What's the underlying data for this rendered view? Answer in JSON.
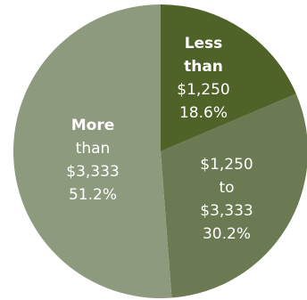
{
  "chart_data": {
    "type": "pie",
    "start_angle_deg": 0,
    "direction": "clockwise",
    "slices": [
      {
        "label_lines": [
          "Less",
          "than",
          "$1,250",
          "18.6%"
        ],
        "category": "Less than $1,250",
        "value": 18.6,
        "color": "#4f6228",
        "bold_lines": [
          true,
          true,
          false,
          false
        ]
      },
      {
        "label_lines": [
          "$1,250",
          "to",
          "$3,333",
          "30.2%"
        ],
        "category": "$1,250 to $3,333",
        "value": 30.2,
        "color": "#6b7a53",
        "bold_lines": [
          false,
          false,
          false,
          false
        ]
      },
      {
        "label_lines": [
          "More",
          "than",
          "$3,333",
          "51.2%"
        ],
        "category": "More than $3,333",
        "value": 51.2,
        "color": "#8e9a7e",
        "bold_lines": [
          true,
          false,
          false,
          false
        ]
      }
    ]
  }
}
